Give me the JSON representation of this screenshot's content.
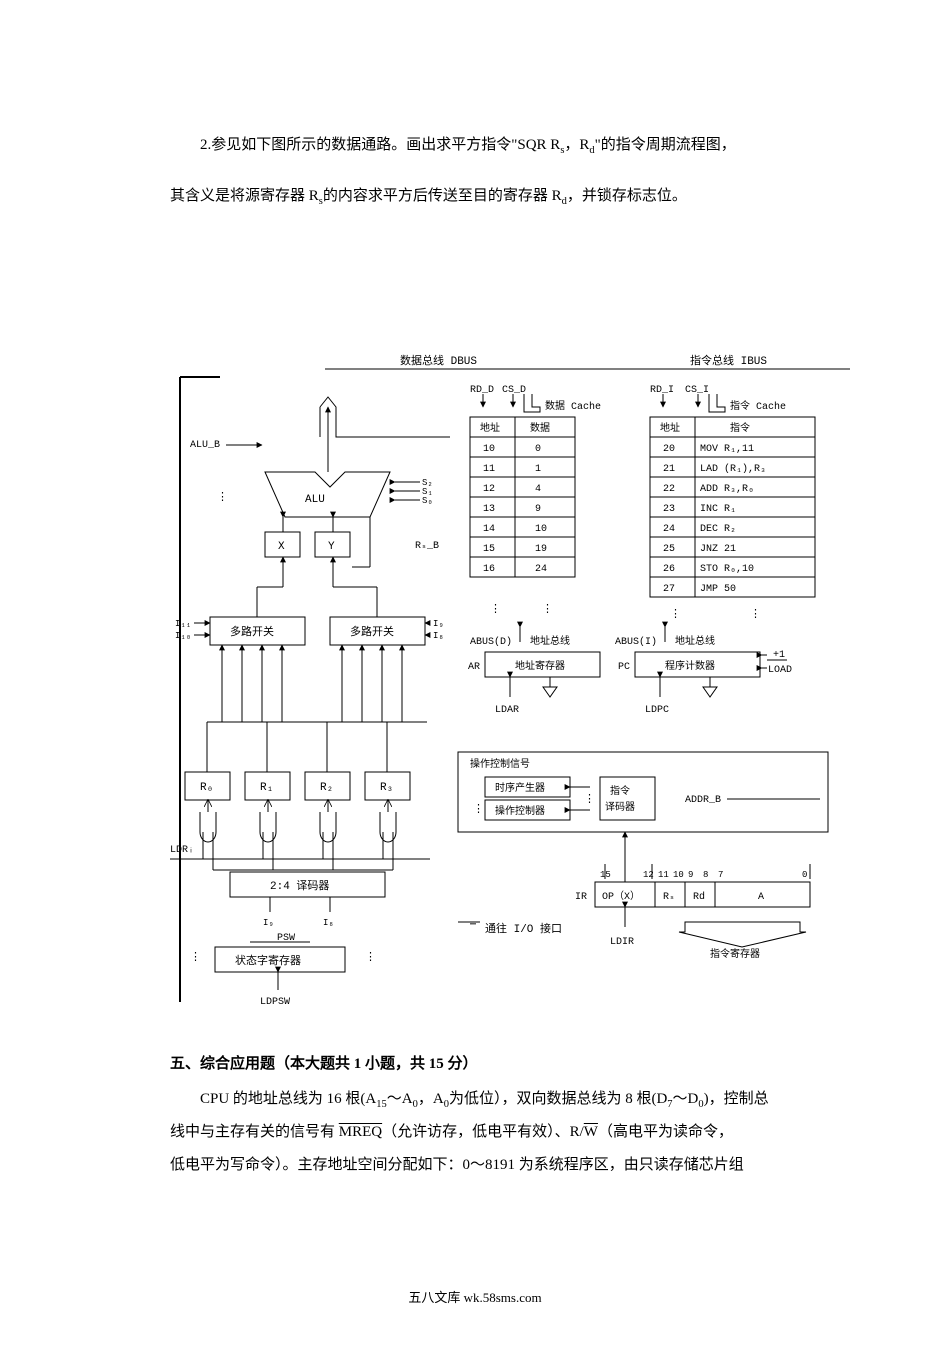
{
  "question2": {
    "line1": "2.参见如下图所示的数据通路。画出求平方指令\"SQR  R",
    "sub1": "s",
    "line1b": "，R",
    "sub2": "d",
    "line1c": "\"的指令周期流程图，",
    "line2a": "其含义是将源寄存器 R",
    "sub3": "s",
    "line2b": "的内容求平方后传送至目的寄存器 R",
    "sub4": "d",
    "line2c": "，并锁存标志位。"
  },
  "section5": {
    "title": "五、综合应用题（本大题共 1 小题，共 15 分）",
    "p1a": "CPU 的地址总线为 16 根(A",
    "p1sub1": "15",
    "p1b": "～A",
    "p1sub2": "0",
    "p1c": "，A",
    "p1sub3": "0",
    "p1d": "为低位），双向数据总线为 8 根(D",
    "p1sub4": "7",
    "p1e": "～D",
    "p1sub5": "0",
    "p1f": ")，控制总",
    "p2a": "线中与主存有关的信号有 ",
    "p2mreq": "MREQ",
    "p2b": "（允许访存，低电平有效）、R/",
    "p2w": "W",
    "p2c": "（高电平为读命令，",
    "p3": "低电平为写命令）。主存地址空间分配如下：0～8191 为系统程序区，由只读存储芯片组"
  },
  "footer": "五八文库 wk.58sms.com",
  "diagram": {
    "busLabels": {
      "dbus": "数据总线 DBUS",
      "ibus": "指令总线 IBUS"
    },
    "alu": {
      "label": "ALU",
      "alu_b": "ALU_B"
    },
    "xy": {
      "x": "X",
      "y": "Y"
    },
    "mux": {
      "left": "多路开关",
      "right": "多路开关"
    },
    "muxSig": {
      "i11": "I₁₁",
      "i10": "I₁₀",
      "i9": "I₉",
      "i8": "I₈"
    },
    "aluSig": {
      "s2": "S₂",
      "s1": "S₁",
      "s0": "S₀",
      "rs_b": "Rₛ_B"
    },
    "regs": {
      "r0": "R₀",
      "r1": "R₁",
      "r2": "R₂",
      "r3": "R₃"
    },
    "ldri": "LDRᵢ",
    "decoder24": "2:4 译码器",
    "decoderSig": {
      "i9": "I₉",
      "i8": "I₈"
    },
    "psw": {
      "psw": "PSW",
      "statusReg": "状态字寄存器",
      "ldpsw": "LDPSW"
    },
    "dataCache": {
      "label": "数据 Cache",
      "rdd": "RD_D",
      "csd": "CS_D",
      "addrHdr": "地址",
      "dataHdr": "数据",
      "rows": [
        [
          "10",
          "0"
        ],
        [
          "11",
          "1"
        ],
        [
          "12",
          "4"
        ],
        [
          "13",
          "9"
        ],
        [
          "14",
          "10"
        ],
        [
          "15",
          "19"
        ],
        [
          "16",
          "24"
        ]
      ]
    },
    "instrCache": {
      "label": "指令 Cache",
      "rdi": "RD_I",
      "csi": "CS_I",
      "addrHdr": "地址",
      "instrHdr": "指令",
      "rows": [
        [
          "20",
          "MOV R₁,11"
        ],
        [
          "21",
          "LAD (R₁),R₃"
        ],
        [
          "22",
          "ADD R₃,R₀"
        ],
        [
          "23",
          "INC R₁"
        ],
        [
          "24",
          "DEC R₂"
        ],
        [
          "25",
          "JNZ 21"
        ],
        [
          "26",
          "STO R₀,10"
        ],
        [
          "27",
          "JMP 50"
        ]
      ]
    },
    "ar": {
      "ar": "AR",
      "label": "地址寄存器",
      "ldar": "LDAR",
      "abusd": "ABUS(D)",
      "abusdLabel": "地址总线"
    },
    "pc": {
      "pc": "PC",
      "label": "程序计数器",
      "ldpc": "LDPC",
      "abusi": "ABUS(I)",
      "abusiLabel": "地址总线",
      "plus1": "+1",
      "load": "LOAD"
    },
    "control": {
      "opSig": "操作控制信号",
      "timing": "时序产生器",
      "ctrl": "操作控制器",
      "idec": "指令",
      "idec2": "译码器",
      "addrb": "ADDR_B"
    },
    "io": "通往 I/O 接口",
    "ir": {
      "ir": "IR",
      "op": "OP（X）",
      "rs": "Rₛ",
      "rd": "Rd",
      "a": "A",
      "ldir": "LDIR",
      "irlabel": "指令寄存器",
      "bits": {
        "b15": "15",
        "b12": "12",
        "b11": "11",
        "b10": "10",
        "b9": "9",
        "b8": "8",
        "b7": "7",
        "b0": "0"
      }
    }
  }
}
